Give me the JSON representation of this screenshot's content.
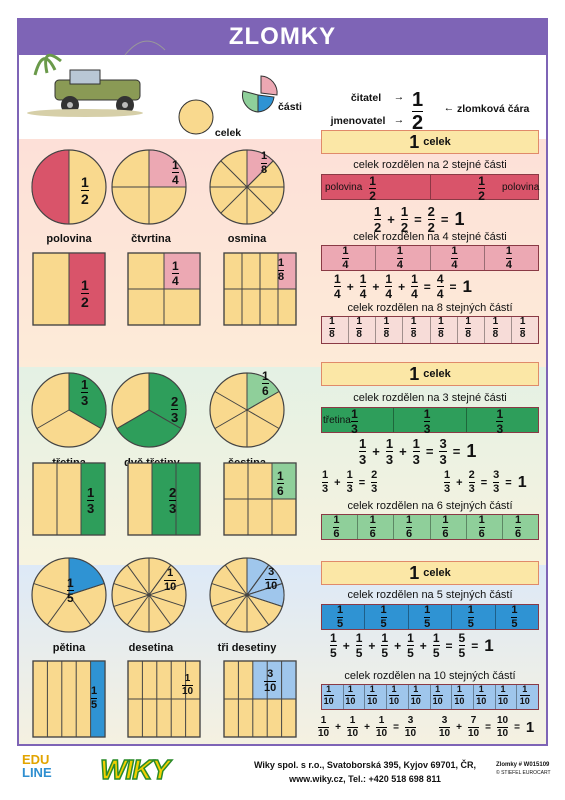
{
  "title": "ZLOMKY",
  "intro": {
    "celek": "celek",
    "casti": "části",
    "citatel": "čitatel",
    "jmenovatel": "jmenovatel",
    "zlomkova_cara": "zlomková čára",
    "n": "1",
    "d": "2",
    "arrow": "→",
    "larrow": "←"
  },
  "f": {
    "half": [
      "1",
      "2"
    ],
    "quarter": [
      "1",
      "4"
    ],
    "eighth": [
      "1",
      "8"
    ],
    "third": [
      "1",
      "3"
    ],
    "twothirds": [
      "2",
      "3"
    ],
    "sixth": [
      "1",
      "6"
    ],
    "fifth": [
      "1",
      "5"
    ],
    "tenth": [
      "1",
      "10"
    ],
    "threetenths": [
      "3",
      "10"
    ],
    "twohalves": [
      "2",
      "2"
    ],
    "fourq": [
      "4",
      "4"
    ],
    "threethirds": [
      "3",
      "3"
    ],
    "fivefifths": [
      "5",
      "5"
    ],
    "tentenths": [
      "10",
      "10"
    ],
    "sevententhsum": [
      "7",
      "10"
    ]
  },
  "ops": {
    "plus": "+",
    "eq": "=",
    "one": "1"
  },
  "s1": {
    "polovina": "polovina",
    "ctvrtina": "čtvrtina",
    "osmina": "osmina",
    "celek_big": "1",
    "celek_sm": "celek",
    "t2a": "celek rozdělen na ",
    "t2b": "2",
    "t2c": " stejné části",
    "t4b": "4",
    "t8a": "celek rozdělen na ",
    "t8b": "8",
    "t8c": " stejných částí"
  },
  "s2": {
    "tretina": "třetina",
    "dve_tretiny": "dvě třetiny",
    "sestina": "šestina",
    "t3b": "3",
    "t6b": "6"
  },
  "s3": {
    "petina": "pětina",
    "desetina": "desetina",
    "tri_desetiny": "tři desetiny",
    "t5b": "5",
    "t10b": "10"
  },
  "footer": {
    "edu1": "EDU",
    "edu2": "LINE",
    "wiky": "WIKY",
    "addr1": "Wiky spol. s r.o., Svatoborská 395, Kyjov 69701, ČR,",
    "addr2": "www.wiky.cz, Tel.: +420 518 698 811",
    "code": "Zlomky # W015109",
    "copy": "© STIEFEL EUROCART"
  },
  "colors": {
    "red": "#d9546a",
    "pink": "#eca8b3",
    "green": "#2e9e5b",
    "lightgreen": "#8fcf9a",
    "blue": "#2f93d3",
    "lightblue": "#9fc6ec",
    "cream": "#f9d98e",
    "purple": "#7e64b6",
    "ybox": "#fbe7a6"
  }
}
